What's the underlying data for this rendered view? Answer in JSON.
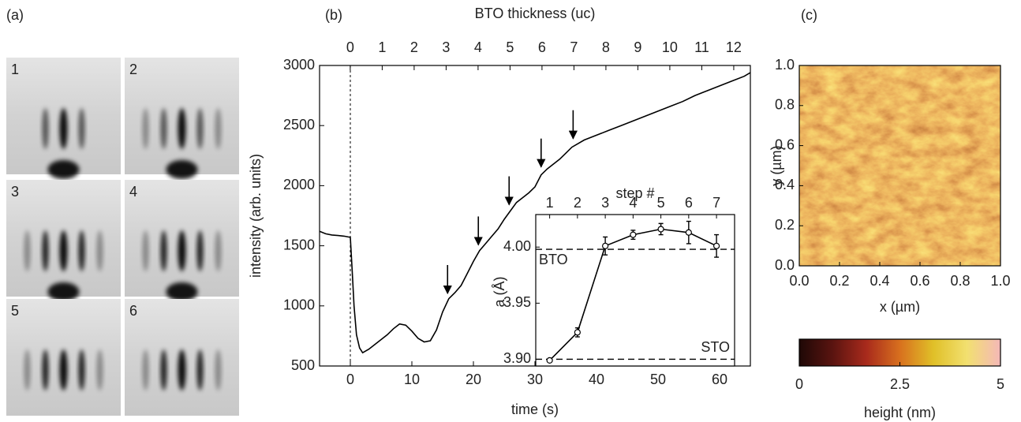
{
  "chart_data": [
    {
      "type": "image-grid",
      "panel": "(a)",
      "categories": [
        "1",
        "2",
        "3",
        "4",
        "5",
        "6"
      ]
    },
    {
      "type": "line",
      "panel": "(b)",
      "xlabel": "time (s)",
      "ylabel": "intensity (arb. units)",
      "x2label": "BTO thickness (uc)",
      "x": [
        -5,
        -4,
        -3,
        -2,
        -1,
        0,
        0.3,
        0.6,
        1,
        1.5,
        2,
        3,
        4,
        5,
        6,
        7,
        8,
        9,
        10,
        11,
        12,
        13,
        14,
        15,
        16,
        17,
        18,
        19,
        20,
        21,
        22,
        23,
        24,
        25,
        26,
        27,
        28,
        29,
        30,
        31,
        32,
        33,
        34,
        35,
        36,
        37,
        38,
        40,
        42,
        44,
        46,
        48,
        50,
        52,
        54,
        56,
        58,
        60,
        62,
        64,
        65
      ],
      "values": [
        1620,
        1600,
        1590,
        1585,
        1580,
        1570,
        1300,
        1000,
        760,
        650,
        610,
        640,
        680,
        720,
        760,
        810,
        850,
        840,
        790,
        730,
        700,
        710,
        800,
        950,
        1060,
        1110,
        1170,
        1270,
        1370,
        1460,
        1520,
        1580,
        1640,
        1720,
        1790,
        1860,
        1900,
        1940,
        1990,
        2090,
        2140,
        2180,
        2220,
        2270,
        2320,
        2350,
        2380,
        2420,
        2460,
        2500,
        2540,
        2580,
        2620,
        2660,
        2700,
        2750,
        2790,
        2830,
        2870,
        2910,
        2940
      ],
      "color": "#000000",
      "xlim": [
        -5,
        65
      ],
      "xticks": [
        0,
        10,
        20,
        30,
        40,
        50,
        60
      ],
      "ylim": [
        500,
        3000
      ],
      "yticks": [
        500,
        1000,
        1500,
        2000,
        2500,
        3000
      ],
      "x2lim": [
        -0.96,
        12.52
      ],
      "x2ticks": [
        0,
        1,
        2,
        3,
        4,
        5,
        6,
        7,
        8,
        9,
        10,
        11,
        12
      ],
      "vline_x": 0,
      "arrows_x": [
        15.8,
        20.8,
        25.8,
        31.0,
        36.2
      ]
    },
    {
      "type": "inset",
      "xlabel": "step #",
      "ylabel": "a (Å)",
      "x": [
        1,
        2,
        3,
        4,
        5,
        6,
        7
      ],
      "values": [
        3.899,
        3.924,
        4.001,
        4.011,
        4.016,
        4.013,
        4.001
      ],
      "errors": [
        0.001,
        0.004,
        0.008,
        0.004,
        0.005,
        0.01,
        0.01
      ],
      "xlim": [
        0.5,
        7.65
      ],
      "xticks": [
        1,
        2,
        3,
        4,
        5,
        6,
        7
      ],
      "ylim": [
        3.894,
        4.029
      ],
      "yticks": [
        {
          "value": 3.9,
          "label": "3.90"
        },
        {
          "value": 3.95,
          "label": "3.95"
        },
        {
          "value": 4.0,
          "label": "4.00"
        }
      ],
      "hlines": [
        {
          "value": 3.998,
          "label": "BTO"
        },
        {
          "value": 3.9,
          "label": "STO"
        }
      ]
    },
    {
      "type": "heatmap",
      "panel": "(c)",
      "xlabel": "x (µm)",
      "ylabel": "y (µm)",
      "xlim": [
        0,
        1
      ],
      "ylim": [
        0,
        1
      ],
      "xticks": [
        {
          "value": 0,
          "label": "0.0"
        },
        {
          "value": 0.2,
          "label": "0.2"
        },
        {
          "value": 0.4,
          "label": "0.4"
        },
        {
          "value": 0.6,
          "label": "0.6"
        },
        {
          "value": 0.8,
          "label": "0.8"
        },
        {
          "value": 1,
          "label": "1.0"
        }
      ],
      "yticks": [
        {
          "value": 0,
          "label": "0.0"
        },
        {
          "value": 0.2,
          "label": "0.2"
        },
        {
          "value": 0.4,
          "label": "0.4"
        },
        {
          "value": 0.6,
          "label": "0.6"
        },
        {
          "value": 0.8,
          "label": "0.8"
        },
        {
          "value": 1,
          "label": "1.0"
        }
      ],
      "colorbar": {
        "label": "height (nm)",
        "lim": [
          0,
          5
        ],
        "ticks": [
          0,
          2.5,
          5
        ],
        "colors": [
          "#1e0806",
          "#5a1410",
          "#a82a1c",
          "#d8701e",
          "#e0c028",
          "#f2e070",
          "#f4b8b8"
        ]
      }
    }
  ]
}
